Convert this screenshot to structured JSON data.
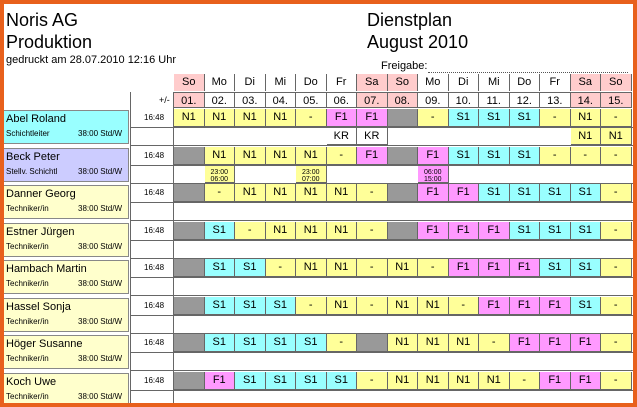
{
  "company": "Noris AG",
  "department": "Produktion",
  "printed": "gedruckt am 28.07.2010  12:16 Uhr",
  "title": "Dienstplan",
  "month": "August 2010",
  "approval_label": "Freigabe:",
  "balance_label": "+/-",
  "days": [
    {
      "wd": "So",
      "d": "01.",
      "weekend": true
    },
    {
      "wd": "Mo",
      "d": "02.",
      "weekend": false
    },
    {
      "wd": "Di",
      "d": "03.",
      "weekend": false
    },
    {
      "wd": "Mi",
      "d": "04.",
      "weekend": false
    },
    {
      "wd": "Do",
      "d": "05.",
      "weekend": false
    },
    {
      "wd": "Fr",
      "d": "06.",
      "weekend": false
    },
    {
      "wd": "Sa",
      "d": "07.",
      "weekend": true
    },
    {
      "wd": "So",
      "d": "08.",
      "weekend": true
    },
    {
      "wd": "Mo",
      "d": "09.",
      "weekend": false
    },
    {
      "wd": "Di",
      "d": "10.",
      "weekend": false
    },
    {
      "wd": "Mi",
      "d": "11.",
      "weekend": false
    },
    {
      "wd": "Do",
      "d": "12.",
      "weekend": false
    },
    {
      "wd": "Fr",
      "d": "13.",
      "weekend": false
    },
    {
      "wd": "Sa",
      "d": "14.",
      "weekend": true
    },
    {
      "wd": "So",
      "d": "15.",
      "weekend": true
    }
  ],
  "shift_colors": {
    "N1": "#ffff99",
    "S1": "#99ffff",
    "F1": "#ff99ff",
    "-": "#ffff99",
    "x": "#999999"
  },
  "employees": [
    {
      "name": "Abel Roland",
      "role": "Schichtleiter",
      "hours": "38:00 Std/W",
      "balance": "16:48",
      "name_bg": "#99ffff",
      "shifts": [
        "N1",
        "N1",
        "N1",
        "N1",
        "-",
        "F1",
        "F1",
        "x",
        "-",
        "S1",
        "S1",
        "S1",
        "-",
        "N1",
        "-"
      ],
      "extra": [
        "",
        "",
        "",
        "",
        "",
        "KR",
        "KR",
        "",
        "",
        "",
        "",
        "",
        "",
        "N1",
        "N1"
      ]
    },
    {
      "name": "Beck Peter",
      "role": "Stellv. Schichtl",
      "hours": "38:00 Std/W",
      "balance": "16:48",
      "name_bg": "#ccccff",
      "shifts": [
        "x",
        "N1",
        "N1",
        "N1",
        "N1",
        "-",
        "F1",
        "x",
        "F1",
        "S1",
        "S1",
        "S1",
        "-",
        "-",
        "-"
      ],
      "extra": [
        "",
        "23:00|06:00",
        "",
        "",
        "23:00|07:00",
        "",
        "",
        "",
        "06:00|15:00",
        "",
        "",
        "",
        "",
        "",
        ""
      ]
    },
    {
      "name": "Danner Georg",
      "role": "Techniker/in",
      "hours": "38:00 Std/W",
      "balance": "16:48",
      "name_bg": "#ffffcc",
      "shifts": [
        "x",
        "-",
        "N1",
        "N1",
        "N1",
        "N1",
        "-",
        "x",
        "F1",
        "F1",
        "S1",
        "S1",
        "S1",
        "S1",
        "-"
      ],
      "extra": []
    },
    {
      "name": "Estner Jürgen",
      "role": "Techniker/in",
      "hours": "38:00 Std/W",
      "balance": "16:48",
      "name_bg": "#ffffcc",
      "shifts": [
        "x",
        "S1",
        "-",
        "N1",
        "N1",
        "N1",
        "-",
        "x",
        "F1",
        "F1",
        "F1",
        "S1",
        "S1",
        "S1",
        "-"
      ],
      "extra": []
    },
    {
      "name": "Hambach Martin",
      "role": "Techniker/in",
      "hours": "38:00 Std/W",
      "balance": "16:48",
      "name_bg": "#ffffcc",
      "shifts": [
        "x",
        "S1",
        "S1",
        "-",
        "N1",
        "N1",
        "-",
        "N1",
        "-",
        "F1",
        "F1",
        "F1",
        "S1",
        "S1",
        "-"
      ],
      "extra": []
    },
    {
      "name": "Hassel Sonja",
      "role": "Techniker/in",
      "hours": "38:00 Std/W",
      "balance": "16:48",
      "name_bg": "#ffffcc",
      "shifts": [
        "x",
        "S1",
        "S1",
        "S1",
        "-",
        "N1",
        "-",
        "N1",
        "N1",
        "-",
        "F1",
        "F1",
        "F1",
        "S1",
        "-"
      ],
      "extra": []
    },
    {
      "name": "Höger Susanne",
      "role": "Techniker/in",
      "hours": "38:00 Std/W",
      "balance": "16:48",
      "name_bg": "#ffffcc",
      "shifts": [
        "x",
        "S1",
        "S1",
        "S1",
        "S1",
        "-",
        "x",
        "N1",
        "N1",
        "N1",
        "-",
        "F1",
        "F1",
        "F1",
        "-"
      ],
      "extra": []
    },
    {
      "name": "Koch Uwe",
      "role": "Techniker/in",
      "hours": "38:00 Std/W",
      "balance": "16:48",
      "name_bg": "#ffffcc",
      "shifts": [
        "x",
        "F1",
        "S1",
        "S1",
        "S1",
        "S1",
        "-",
        "N1",
        "N1",
        "N1",
        "N1",
        "-",
        "F1",
        "F1",
        "-"
      ],
      "extra": []
    }
  ]
}
